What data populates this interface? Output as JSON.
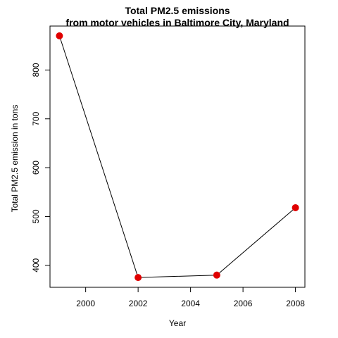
{
  "chart_data": {
    "type": "line",
    "title": [
      "Total PM2.5 emissions",
      "from motor vehicles in Baltimore City, Maryland"
    ],
    "xlabel": "Year",
    "ylabel": "Total PM2.5 emission in tons",
    "x": [
      1999,
      2002,
      2005,
      2008
    ],
    "series": [
      {
        "values": [
          870,
          375,
          380,
          518
        ],
        "color": "#e00000"
      }
    ],
    "xlim": [
      1998.64,
      2008.36
    ],
    "ylim": [
      355,
      890
    ],
    "xticks": [
      2000,
      2002,
      2004,
      2006,
      2008
    ],
    "yticks": [
      400,
      500,
      600,
      700,
      800
    ],
    "line_color": "#000000",
    "grid": false,
    "legend": "none"
  }
}
